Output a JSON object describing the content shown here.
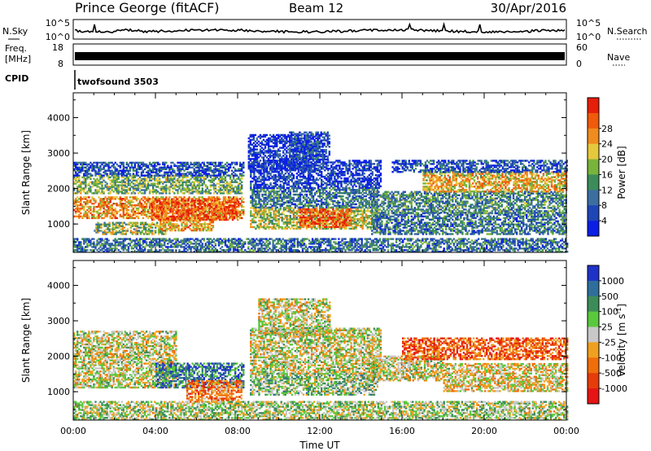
{
  "header": {
    "station": "Prince George (fitACF)",
    "beam": "Beam 12",
    "date": "30/Apr/2016"
  },
  "noise_panel": {
    "left_label": "N.Sky",
    "left_ticks": [
      "10^5",
      "10^0"
    ],
    "right_label": "N.Search",
    "right_ticks": [
      "10^5",
      "10^0"
    ],
    "style": "thin black line trace"
  },
  "freq_panel": {
    "left_label_line1": "Freq.",
    "left_label_line2": "[MHz]",
    "left_ticks": [
      "18",
      "8"
    ],
    "right_label": "Nave",
    "right_ticks": [
      "60",
      "0"
    ]
  },
  "cpid_panel": {
    "label": "CPID",
    "text": "twofsound 3503"
  },
  "chart_data": [
    {
      "type": "heatmap",
      "name": "power",
      "ylabel": "Slant Range [km]",
      "yticks": [
        1000,
        2000,
        3000,
        4000
      ],
      "ylim": [
        200,
        4700
      ],
      "xlim": [
        0,
        24
      ],
      "xticks": [
        0,
        4,
        8,
        12,
        16,
        20,
        24
      ],
      "colorbar": {
        "label": "Power [dB]",
        "ticks": [
          "4",
          "8",
          "12",
          "16",
          "20",
          "24",
          "28"
        ],
        "colors": [
          "#0a1ee6",
          "#1e46b4",
          "#3c6ea0",
          "#3c8c5a",
          "#78b43c",
          "#e6c83c",
          "#f08c1e",
          "#f05a0a",
          "#e61e0a"
        ]
      },
      "regions": [
        {
          "t0": 0.0,
          "t1": 8.3,
          "r0": 1150,
          "r1": 1750,
          "level": 0.72
        },
        {
          "t0": 0.0,
          "t1": 8.2,
          "r0": 1850,
          "r1": 2350,
          "level": 0.45
        },
        {
          "t0": 0.0,
          "t1": 8.3,
          "r0": 2350,
          "r1": 2750,
          "level": 0.18
        },
        {
          "t0": 1.0,
          "t1": 4.5,
          "r0": 700,
          "r1": 1050,
          "level": 0.5
        },
        {
          "t0": 4.2,
          "t1": 6.8,
          "r0": 800,
          "r1": 1200,
          "level": 0.7
        },
        {
          "t0": 3.8,
          "t1": 8.0,
          "r0": 1100,
          "r1": 1700,
          "level": 0.85
        },
        {
          "t0": 8.6,
          "t1": 14.8,
          "r0": 850,
          "r1": 1450,
          "level": 0.55
        },
        {
          "t0": 11.0,
          "t1": 13.5,
          "r0": 900,
          "r1": 1400,
          "level": 0.85
        },
        {
          "t0": 8.6,
          "t1": 14.8,
          "r0": 1450,
          "r1": 2000,
          "level": 0.3
        },
        {
          "t0": 8.6,
          "t1": 15.0,
          "r0": 2000,
          "r1": 2800,
          "level": 0.12
        },
        {
          "t0": 8.5,
          "t1": 12.0,
          "r0": 2500,
          "r1": 3500,
          "level": 0.1
        },
        {
          "t0": 10.5,
          "t1": 12.5,
          "r0": 2800,
          "r1": 3600,
          "level": 0.15
        },
        {
          "t0": 14.5,
          "t1": 24.0,
          "r0": 700,
          "r1": 1300,
          "level": 0.3
        },
        {
          "t0": 14.5,
          "t1": 24.0,
          "r0": 1300,
          "r1": 1900,
          "level": 0.35
        },
        {
          "t0": 17.0,
          "t1": 24.0,
          "r0": 1900,
          "r1": 2450,
          "level": 0.65
        },
        {
          "t0": 15.5,
          "t1": 24.0,
          "r0": 2450,
          "r1": 2800,
          "level": 0.2
        },
        {
          "t0": 0.0,
          "t1": 24.0,
          "r0": 200,
          "r1": 600,
          "level": 0.28
        }
      ]
    },
    {
      "type": "heatmap",
      "name": "velocity",
      "ylabel": "Slant Range [km]",
      "xlabel": "Time UT",
      "yticks": [
        1000,
        2000,
        3000,
        4000
      ],
      "ylim": [
        200,
        4700
      ],
      "xlim": [
        0,
        24
      ],
      "xticks": [
        0,
        4,
        8,
        12,
        16,
        20,
        24
      ],
      "xticklabels": [
        "00:00",
        "04:00",
        "08:00",
        "12:00",
        "16:00",
        "20:00",
        "00:00"
      ],
      "colorbar": {
        "label": "Velocity [m s",
        "label_sup": "-1",
        "label_end": "]",
        "ticks": [
          "1000",
          "500",
          "100",
          "25",
          "-25",
          "-100",
          "-500",
          "-1000"
        ],
        "colors": [
          "#1e32c8",
          "#2f6e9a",
          "#3c8c5a",
          "#5ac83c",
          "#c8c8c8",
          "#f0a01e",
          "#f06e0a",
          "#e63c0a",
          "#e61414"
        ]
      },
      "regions": [
        {
          "t0": 0.0,
          "t1": 5.0,
          "r0": 1100,
          "r1": 2700,
          "level": 0.5
        },
        {
          "t0": 4.0,
          "t1": 8.3,
          "r0": 1100,
          "r1": 1800,
          "level": 0.2
        },
        {
          "t0": 5.5,
          "t1": 8.2,
          "r0": 700,
          "r1": 1300,
          "level": 0.72
        },
        {
          "t0": 8.6,
          "t1": 14.8,
          "r0": 900,
          "r1": 1500,
          "level": 0.4
        },
        {
          "t0": 8.6,
          "t1": 15.0,
          "r0": 1500,
          "r1": 2800,
          "level": 0.5
        },
        {
          "t0": 9.0,
          "t1": 12.5,
          "r0": 2600,
          "r1": 3600,
          "level": 0.5
        },
        {
          "t0": 14.5,
          "t1": 18.0,
          "r0": 1300,
          "r1": 2000,
          "level": 0.5
        },
        {
          "t0": 16.0,
          "t1": 24.0,
          "r0": 1900,
          "r1": 2500,
          "level": 0.78
        },
        {
          "t0": 18.0,
          "t1": 24.0,
          "r0": 1000,
          "r1": 1800,
          "level": 0.55
        },
        {
          "t0": 0.0,
          "t1": 24.0,
          "r0": 200,
          "r1": 700,
          "level": 0.45
        }
      ]
    }
  ]
}
